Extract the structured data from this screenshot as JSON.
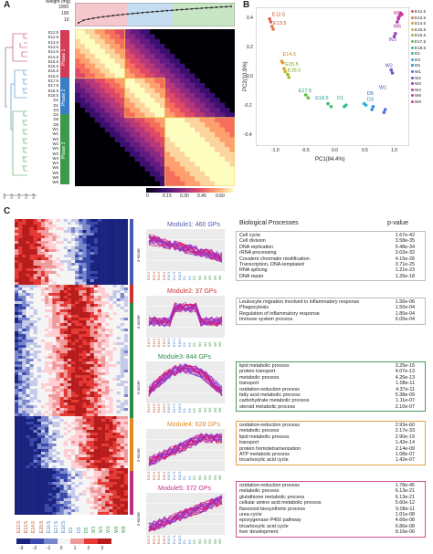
{
  "panels": {
    "a": "A",
    "b": "B",
    "c": "C"
  },
  "panel_a": {
    "weight_axis_label": "Weight (mg)",
    "weight_ticks": [
      "1000",
      "100",
      "10"
    ],
    "samples": [
      "E12.5",
      "E12.5",
      "E13.5",
      "E13.5",
      "E14.5",
      "E14.5",
      "E15.5",
      "E15.5",
      "E16.5",
      "E16.5",
      "E17.5",
      "E17.5",
      "E18.5",
      "E18.5",
      "D1",
      "D1",
      "D3",
      "D3",
      "D5",
      "D5",
      "W1",
      "W1",
      "W2",
      "W2",
      "W3",
      "W3",
      "W4",
      "W4",
      "W6",
      "W6",
      "W8",
      "W8"
    ],
    "phases": [
      "Phase 1",
      "Phase 2",
      "Phase 3"
    ],
    "colorbar_ticks": [
      "0",
      "0.15",
      "0.30",
      "0.45",
      "0.60"
    ],
    "dendro_ticks": [
      "0.0",
      "0.2",
      "0.4",
      "0.6",
      "0.8"
    ]
  },
  "panel_b": {
    "xlabel": "PC1(84.4%)",
    "ylabel": "PC2(10.9%)",
    "xticks": [
      "-1.0",
      "-0.5",
      "0.0",
      "0.5",
      "1.0"
    ],
    "yticks": [
      "0.4",
      "0.2",
      "0.0",
      "-0.2",
      "-0.4"
    ],
    "legend": [
      "E12.5",
      "E13.5",
      "E14.5",
      "E15.5",
      "E16.5",
      "E17.5",
      "E18.5",
      "D1",
      "D3",
      "D5",
      "W1",
      "W2",
      "W3",
      "W4",
      "W6",
      "W8"
    ],
    "legend_colors": [
      "#e05a4a",
      "#e07840",
      "#e0a030",
      "#c8b020",
      "#9cc030",
      "#60c040",
      "#38c070",
      "#30c0a0",
      "#30b0d0",
      "#3090e0",
      "#5070e0",
      "#7050d0",
      "#9040c0",
      "#b040b0",
      "#c040a0",
      "#d04090"
    ],
    "point_labels": [
      {
        "t": "E12.5",
        "c": "#c0502a"
      },
      {
        "t": "E13.5",
        "c": "#c0502a"
      },
      {
        "t": "E14.5",
        "c": "#d08020"
      },
      {
        "t": "E15.5",
        "c": "#7a9a20"
      },
      {
        "t": "E16.5",
        "c": "#7a9a20"
      },
      {
        "t": "E17.5",
        "c": "#209a70"
      },
      {
        "t": "E18.5",
        "c": "#209a90"
      },
      {
        "t": "D1",
        "c": "#209a90"
      },
      {
        "t": "D3",
        "c": "#2080b0"
      },
      {
        "t": "D5",
        "c": "#2060b0"
      },
      {
        "t": "W1",
        "c": "#4050c0"
      },
      {
        "t": "W2",
        "c": "#6040c0"
      },
      {
        "t": "W3",
        "c": "#8030b0"
      },
      {
        "t": "W6",
        "c": "#a02090"
      },
      {
        "t": "W8",
        "c": "#b02090"
      }
    ]
  },
  "panel_c": {
    "bp_header": "Biological Processes",
    "pv_header": "p-value",
    "zscore_label": "z-score",
    "heat_ticks": [
      "-3",
      "-2",
      "-1",
      "0",
      "1",
      "2",
      "3"
    ],
    "x_samples": [
      "E12.5",
      "E13.5",
      "E14.5",
      "E15.5",
      "E16.5",
      "E17.5",
      "E18.5",
      "D1",
      "D3",
      "D5",
      "W1",
      "W2",
      "W3",
      "W6",
      "W8"
    ],
    "modules": [
      {
        "title": "Module1:  460 GPs",
        "color": "#4a5ab0",
        "rows": [
          [
            "Cell cycle",
            "1.67e-42"
          ],
          [
            "Cell division",
            "3.58e-35"
          ],
          [
            "DNA replication",
            "5.48e-34"
          ],
          [
            "rRNA processing",
            "3.02e-32"
          ],
          [
            "Covalent chromatin modification",
            "4.15e-28"
          ],
          [
            "Transcription, DNA-templated",
            "3.71e-25"
          ],
          [
            "RNA splicing",
            "1.21e-23"
          ],
          [
            "DNA repair",
            "1.26e-18"
          ]
        ]
      },
      {
        "title": "Module2: 37 GPs",
        "color": "#d03030",
        "rows": [
          [
            "Leukocyte migration involved in inflammatory response",
            "1.56e-06"
          ],
          [
            "Phagocytosis",
            "1.50e-04"
          ],
          [
            "Regulation of inflammatory response",
            "1.85e-04"
          ],
          [
            "Immune system process",
            "6.05e-04"
          ]
        ]
      },
      {
        "title": "Module3: 844 GPs",
        "color": "#2a8a4a",
        "rows": [
          [
            "lipid metabolic process",
            "3.25e-15"
          ],
          [
            "protein transport",
            "4.07e-13"
          ],
          [
            "metabolic process",
            "4.26e-13"
          ],
          [
            "transport",
            "1.08e-11"
          ],
          [
            "oxidation-reduction process",
            "4.37e-11"
          ],
          [
            "fatty acid metabolic process",
            "5.38e-09"
          ],
          [
            "carbohydrate metabolic process",
            "1.11e-07"
          ],
          [
            "steroid metabolic process",
            "2.10e-07"
          ]
        ]
      },
      {
        "title": "Module4: 628 GPs",
        "color": "#e08a20",
        "rows": [
          [
            "oxidation-reduction process",
            "2.93e-60"
          ],
          [
            "metabolic process",
            "2.17e-33"
          ],
          [
            "lipid metabolic process",
            "2.90e-19"
          ],
          [
            "transport",
            "1.42e-14"
          ],
          [
            "protein homotetramerization",
            "2.14e-09"
          ],
          [
            "ATP metabolic process",
            "1.08e-07"
          ],
          [
            "tricarboxylic acid cycle",
            "1.42e-07"
          ]
        ]
      },
      {
        "title": "Module5: 372 GPs",
        "color": "#c03080",
        "rows": [
          [
            "oxidation-reduction process",
            "1.78e-45"
          ],
          [
            "metabolic process",
            "6.13e-21"
          ],
          [
            "glutathione metabolic process",
            "6.13e-21"
          ],
          [
            "cellular amino acid metabolic process",
            "5.60e-12"
          ],
          [
            "flavonoid biosynthetic process",
            "9.08e-11"
          ],
          [
            "urea cycle",
            "1.01e-08"
          ],
          [
            "epoxygenase P450 pathway",
            "4.66e-08"
          ],
          [
            "tricarboxylic acid cycle",
            "6.86e-08"
          ],
          [
            "liver development",
            "9.16e-06"
          ]
        ]
      }
    ]
  }
}
